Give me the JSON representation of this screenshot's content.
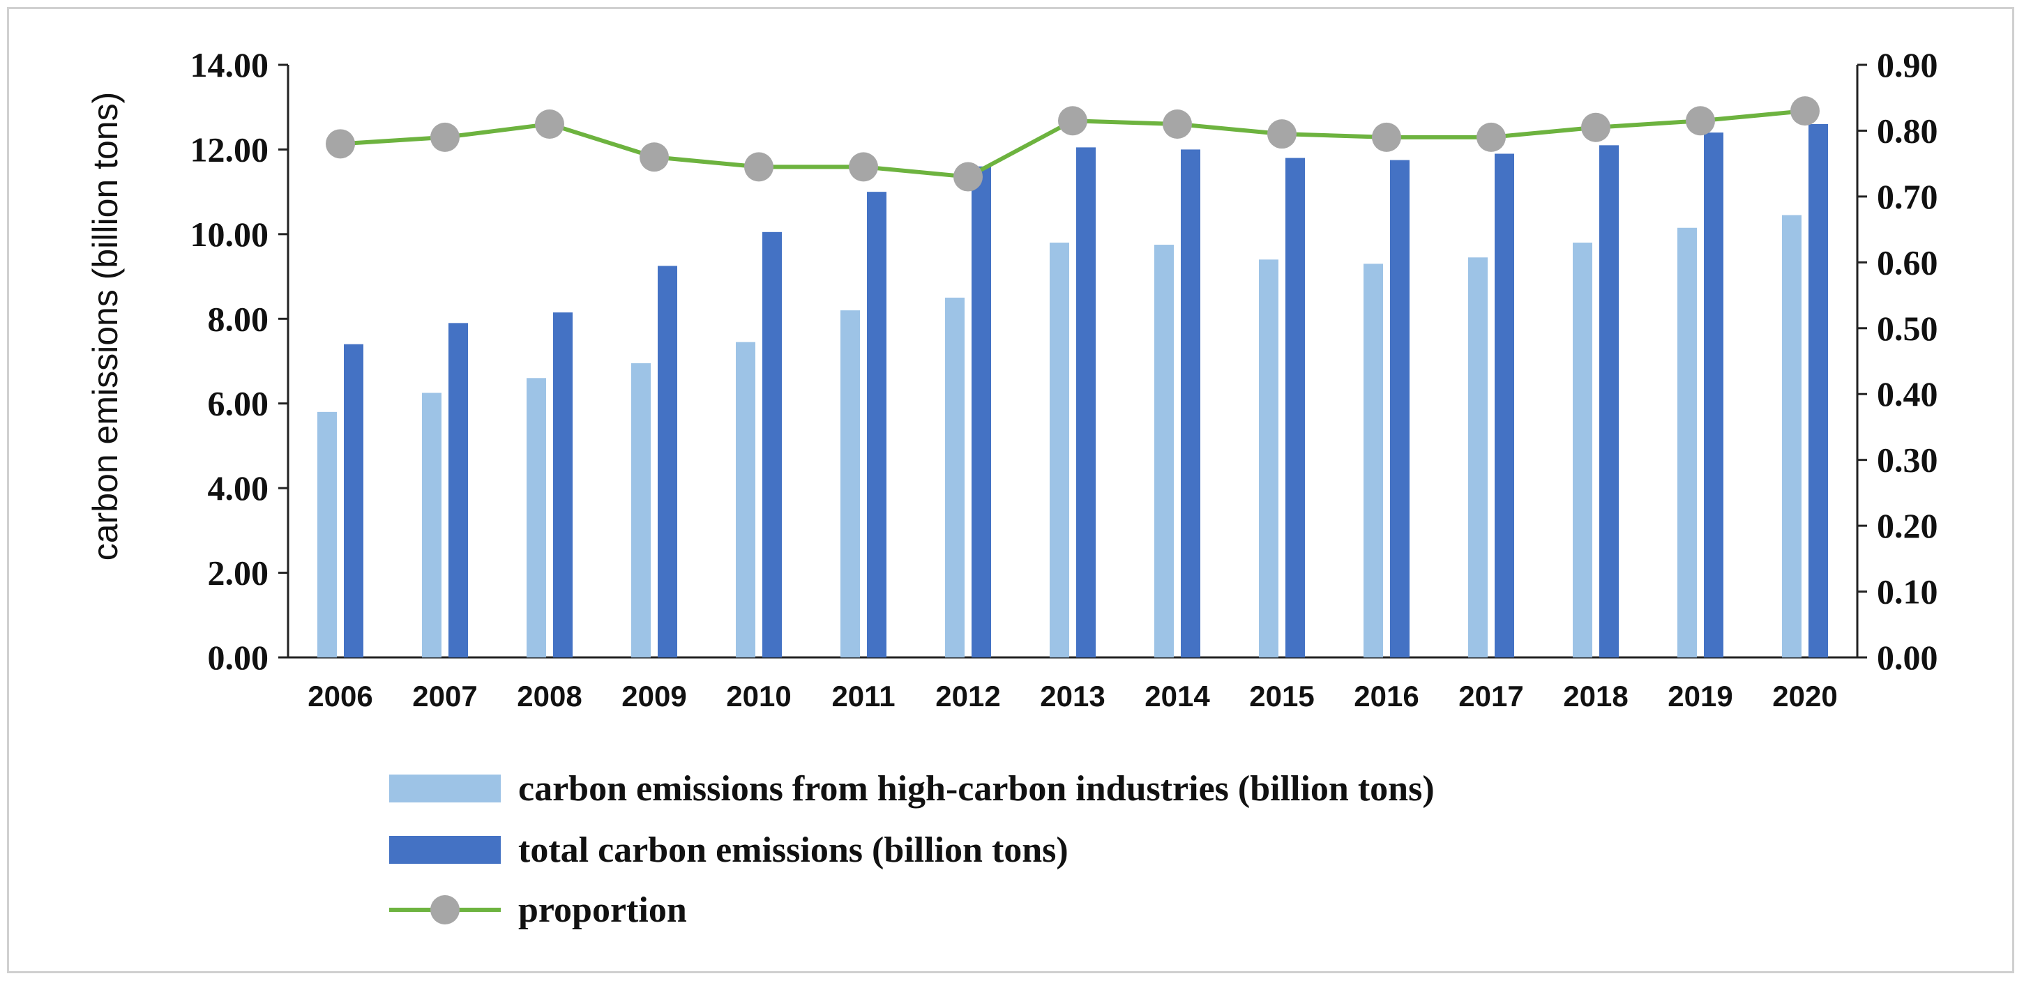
{
  "chart_data": {
    "type": "bar",
    "title": "",
    "categories": [
      "2006",
      "2007",
      "2008",
      "2009",
      "2010",
      "2011",
      "2012",
      "2013",
      "2014",
      "2015",
      "2016",
      "2017",
      "2018",
      "2019",
      "2020"
    ],
    "series": [
      {
        "name": "carbon emissions from high-carbon industries (billion tons)",
        "type": "bar",
        "axis": "left",
        "color": "#9dc3e6",
        "values": [
          5.8,
          6.25,
          6.6,
          6.95,
          7.45,
          8.2,
          8.5,
          9.8,
          9.75,
          9.4,
          9.3,
          9.45,
          9.8,
          10.15,
          10.45
        ]
      },
      {
        "name": "total carbon emissions (billion tons)",
        "type": "bar",
        "axis": "left",
        "color": "#4472c4",
        "values": [
          7.4,
          7.9,
          8.15,
          9.25,
          10.05,
          11.0,
          11.6,
          12.05,
          12.0,
          11.8,
          11.75,
          11.9,
          12.1,
          12.4,
          12.6
        ]
      },
      {
        "name": "proportion",
        "type": "line",
        "axis": "right",
        "color": "#6db33f",
        "marker_color": "#a6a6a6",
        "values": [
          0.78,
          0.79,
          0.81,
          0.76,
          0.745,
          0.745,
          0.73,
          0.815,
          0.81,
          0.795,
          0.79,
          0.79,
          0.805,
          0.815,
          0.83
        ]
      }
    ],
    "xlabel": "",
    "ylabel": "carbon emissions (billion tons)",
    "ylim": [
      0,
      14
    ],
    "yticks": [
      "0.00",
      "2.00",
      "4.00",
      "6.00",
      "8.00",
      "10.00",
      "12.00",
      "14.00"
    ],
    "y2label": "",
    "y2lim": [
      0,
      0.9
    ],
    "y2ticks": [
      "0.00",
      "0.10",
      "0.20",
      "0.30",
      "0.40",
      "0.50",
      "0.60",
      "0.70",
      "0.80",
      "0.90"
    ],
    "legend_position": "bottom"
  }
}
